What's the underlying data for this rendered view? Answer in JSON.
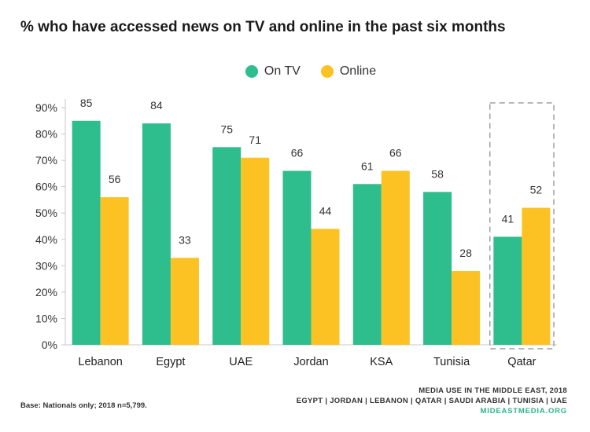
{
  "title": "% who have accessed news on TV and online in the past six months",
  "legend": {
    "tv_label": "On TV",
    "online_label": "Online"
  },
  "colors": {
    "tv": "#2ebd8c",
    "online": "#fcc223",
    "highlight_box": "#a0a0a0",
    "axis": "#c8c8c8"
  },
  "chart_data": {
    "type": "bar",
    "title": "% who have accessed news on TV and online in the past six months",
    "categories": [
      "Lebanon",
      "Egypt",
      "UAE",
      "Jordan",
      "KSA",
      "Tunisia",
      "Qatar"
    ],
    "series": [
      {
        "name": "On TV",
        "values": [
          85,
          84,
          75,
          66,
          61,
          58,
          41
        ]
      },
      {
        "name": "Online",
        "values": [
          56,
          33,
          71,
          44,
          66,
          28,
          52
        ]
      }
    ],
    "yticks": [
      "0%",
      "10%",
      "20%",
      "30%",
      "40%",
      "50%",
      "60%",
      "70%",
      "80%",
      "90%"
    ],
    "ylim": [
      0,
      90
    ],
    "grid": false,
    "legend_position": "top-center",
    "highlighted_category": "Qatar"
  },
  "footer": {
    "base_note": "Base: Nationals only; 2018 n=5,799.",
    "source_line1": "MEDIA USE IN THE MIDDLE EAST, 2018",
    "source_line2": "EGYPT | JORDAN | LEBANON | QATAR | SAUDI ARABIA | TUNISIA | UAE",
    "site": "MIDEASTMEDIA.ORG"
  }
}
